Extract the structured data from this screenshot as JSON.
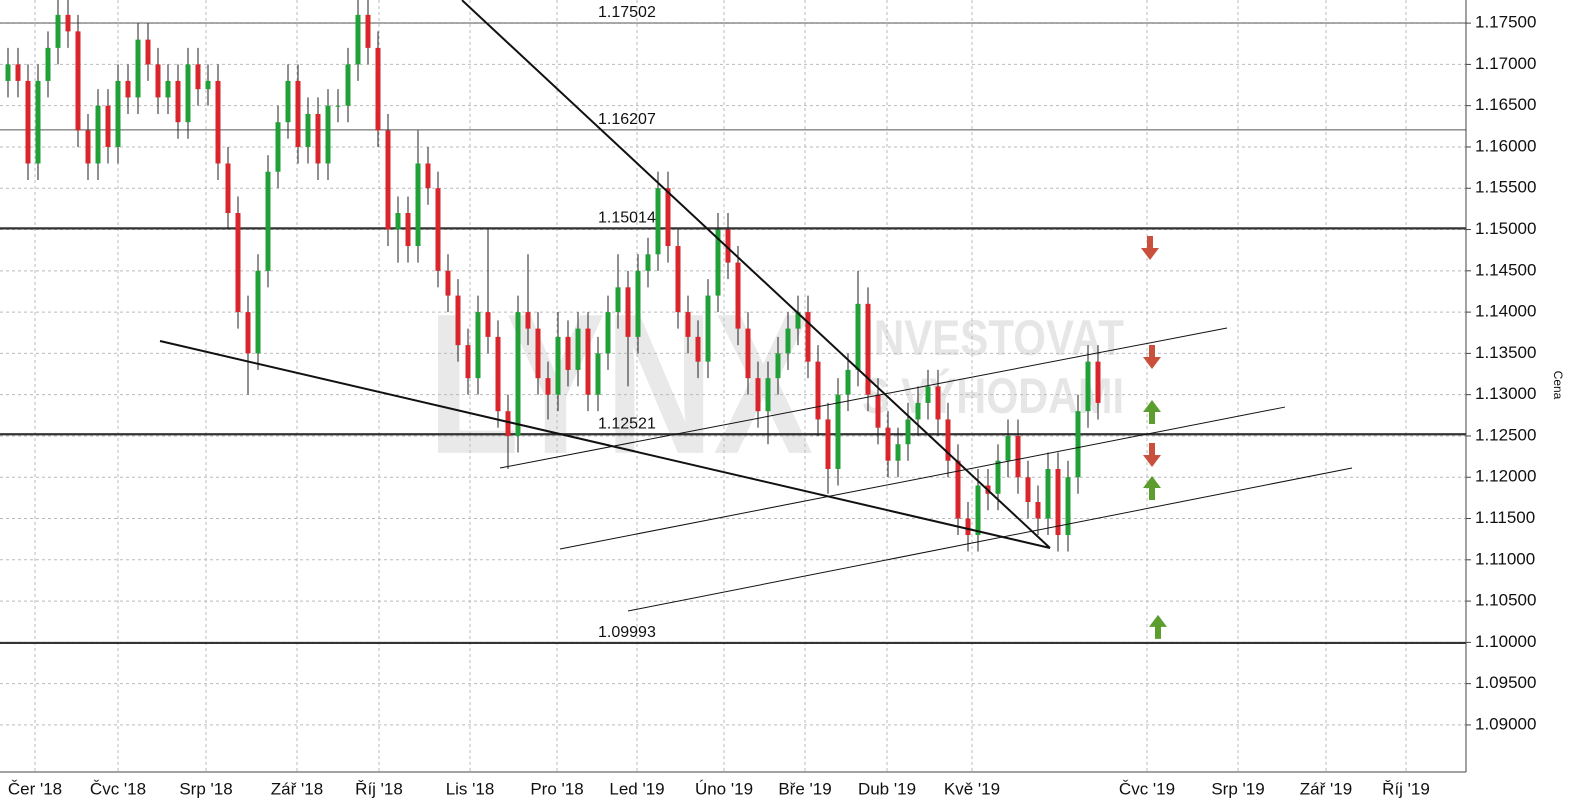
{
  "chart_data": {
    "type": "candlestick",
    "ylabel": "Cena",
    "watermark": {
      "logo": "LYNX",
      "lines": [
        "INVESTOVAT",
        "S VÝHODAMI"
      ]
    },
    "up_color": "#21a038",
    "down_color": "#d8262c",
    "grid": true,
    "xlim": [
      -0.8,
      145.8
    ],
    "ylim": [
      1.0843,
      1.1778
    ],
    "xticks": [
      {
        "value": 2.7,
        "label": "Čer '18"
      },
      {
        "value": 11,
        "label": "Čvc '18"
      },
      {
        "value": 19.8,
        "label": "Srp '18"
      },
      {
        "value": 28.9,
        "label": "Zář '18"
      },
      {
        "value": 37.1,
        "label": "Říj '18"
      },
      {
        "value": 46.2,
        "label": "Lis '18"
      },
      {
        "value": 54.9,
        "label": "Pro '18"
      },
      {
        "value": 62.9,
        "label": "Led '19"
      },
      {
        "value": 71.6,
        "label": "Úno '19"
      },
      {
        "value": 79.7,
        "label": "Bře '19"
      },
      {
        "value": 87.9,
        "label": "Dub '19"
      },
      {
        "value": 96.4,
        "label": "Kvě '19"
      },
      {
        "value": 113.9,
        "label": "Čvc '19"
      },
      {
        "value": 123,
        "label": "Srp '19"
      },
      {
        "value": 131.8,
        "label": "Zář '19"
      },
      {
        "value": 139.8,
        "label": "Říj '19"
      }
    ],
    "yticks": [
      {
        "value": 1.175,
        "label": "1.17500"
      },
      {
        "value": 1.17,
        "label": "1.17000"
      },
      {
        "value": 1.165,
        "label": "1.16500"
      },
      {
        "value": 1.16,
        "label": "1.16000"
      },
      {
        "value": 1.155,
        "label": "1.15500"
      },
      {
        "value": 1.15,
        "label": "1.15000"
      },
      {
        "value": 1.145,
        "label": "1.14500"
      },
      {
        "value": 1.14,
        "label": "1.14000"
      },
      {
        "value": 1.135,
        "label": "1.13500"
      },
      {
        "value": 1.13,
        "label": "1.13000"
      },
      {
        "value": 1.125,
        "label": "1.12500"
      },
      {
        "value": 1.12,
        "label": "1.12000"
      },
      {
        "value": 1.115,
        "label": "1.11500"
      },
      {
        "value": 1.11,
        "label": "1.11000"
      },
      {
        "value": 1.105,
        "label": "1.10500"
      },
      {
        "value": 1.1,
        "label": "1.10000"
      },
      {
        "value": 1.095,
        "label": "1.09500"
      },
      {
        "value": 1.09,
        "label": "1.09000"
      }
    ],
    "levels": [
      {
        "value": 1.17502,
        "bold": false
      },
      {
        "value": 1.16207,
        "bold": false
      },
      {
        "value": 1.15014,
        "bold": true
      },
      {
        "value": 1.12521,
        "bold": true
      },
      {
        "value": 1.09993,
        "bold": true
      }
    ],
    "trendlines": [
      {
        "x": [
          45.4,
          104.2
        ],
        "y": [
          1.17778,
          1.11143
        ],
        "bold": true
      },
      {
        "x": [
          15.2,
          104.2
        ],
        "y": [
          1.1365,
          1.11143
        ],
        "bold": true
      },
      {
        "x": [
          49.2,
          121.9
        ],
        "y": [
          1.12112,
          1.13807
        ],
        "bold": false
      },
      {
        "x": [
          55.2,
          127.7
        ],
        "y": [
          1.11131,
          1.1285
        ],
        "bold": false
      },
      {
        "x": [
          62,
          134.4
        ],
        "y": [
          1.1038,
          1.12112
        ],
        "bold": false
      }
    ],
    "signals": [
      {
        "x": 114.2,
        "y": 1.14776,
        "direction": "down",
        "color": "#c9503c"
      },
      {
        "x": 114.4,
        "y": 1.13456,
        "direction": "down",
        "color": "#c9503c"
      },
      {
        "x": 114.4,
        "y": 1.1279,
        "direction": "up",
        "color": "#5c9e2e"
      },
      {
        "x": 114.4,
        "y": 1.12269,
        "direction": "down",
        "color": "#c9503c"
      },
      {
        "x": 114.4,
        "y": 1.1187,
        "direction": "up",
        "color": "#5c9e2e"
      },
      {
        "x": 115,
        "y": 1.10187,
        "direction": "up",
        "color": "#5c9e2e"
      }
    ],
    "open": [
      1.168,
      1.17,
      1.168,
      1.158,
      1.168,
      1.172,
      1.176,
      1.174,
      1.162,
      1.158,
      1.165,
      1.16,
      1.168,
      1.166,
      1.173,
      1.17,
      1.166,
      1.168,
      1.163,
      1.17,
      1.167,
      1.168,
      1.158,
      1.152,
      1.14,
      1.135,
      1.145,
      1.157,
      1.163,
      1.168,
      1.16,
      1.164,
      1.158,
      1.165,
      1.165,
      1.17,
      1.176,
      1.172,
      1.162,
      1.15,
      1.152,
      1.148,
      1.158,
      1.155,
      1.145,
      1.142,
      1.136,
      1.132,
      1.14,
      1.137,
      1.128,
      1.125,
      1.14,
      1.138,
      1.132,
      1.13,
      1.137,
      1.133,
      1.138,
      1.13,
      1.135,
      1.14,
      1.143,
      1.137,
      1.145,
      1.147,
      1.155,
      1.148,
      1.14,
      1.137,
      1.134,
      1.142,
      1.15,
      1.146,
      1.138,
      1.132,
      1.128,
      1.132,
      1.135,
      1.138,
      1.14,
      1.134,
      1.127,
      1.121,
      1.13,
      1.133,
      1.141,
      1.13,
      1.126,
      1.122,
      1.124,
      1.127,
      1.129,
      1.131,
      1.127,
      1.122,
      1.115,
      1.113,
      1.119,
      1.118,
      1.122,
      1.125,
      1.12,
      1.117,
      1.115,
      1.121,
      1.113,
      1.12,
      1.128,
      1.134
    ],
    "high": [
      1.172,
      1.172,
      1.17,
      1.17,
      1.174,
      1.178,
      1.178,
      1.176,
      1.164,
      1.167,
      1.167,
      1.17,
      1.17,
      1.175,
      1.175,
      1.172,
      1.17,
      1.17,
      1.172,
      1.172,
      1.17,
      1.17,
      1.16,
      1.154,
      1.142,
      1.147,
      1.159,
      1.165,
      1.17,
      1.17,
      1.166,
      1.166,
      1.167,
      1.167,
      1.172,
      1.178,
      1.178,
      1.174,
      1.164,
      1.154,
      1.154,
      1.162,
      1.16,
      1.157,
      1.147,
      1.144,
      1.138,
      1.142,
      1.15,
      1.139,
      1.13,
      1.142,
      1.147,
      1.14,
      1.134,
      1.14,
      1.139,
      1.14,
      1.14,
      1.137,
      1.142,
      1.147,
      1.145,
      1.147,
      1.149,
      1.157,
      1.157,
      1.15,
      1.142,
      1.139,
      1.144,
      1.152,
      1.152,
      1.148,
      1.14,
      1.134,
      1.134,
      1.137,
      1.14,
      1.142,
      1.142,
      1.136,
      1.129,
      1.132,
      1.135,
      1.145,
      1.143,
      1.132,
      1.128,
      1.126,
      1.129,
      1.131,
      1.133,
      1.133,
      1.129,
      1.124,
      1.117,
      1.121,
      1.121,
      1.124,
      1.127,
      1.127,
      1.122,
      1.119,
      1.123,
      1.123,
      1.122,
      1.13,
      1.136,
      1.136
    ],
    "low": [
      1.166,
      1.166,
      1.156,
      1.156,
      1.166,
      1.17,
      1.172,
      1.16,
      1.156,
      1.156,
      1.158,
      1.158,
      1.164,
      1.164,
      1.168,
      1.164,
      1.164,
      1.161,
      1.161,
      1.165,
      1.165,
      1.156,
      1.15,
      1.138,
      1.13,
      1.133,
      1.143,
      1.155,
      1.161,
      1.158,
      1.158,
      1.156,
      1.156,
      1.163,
      1.163,
      1.168,
      1.17,
      1.16,
      1.148,
      1.146,
      1.146,
      1.146,
      1.153,
      1.143,
      1.14,
      1.134,
      1.13,
      1.13,
      1.135,
      1.126,
      1.121,
      1.123,
      1.136,
      1.13,
      1.127,
      1.128,
      1.131,
      1.131,
      1.128,
      1.128,
      1.133,
      1.138,
      1.131,
      1.135,
      1.143,
      1.145,
      1.146,
      1.138,
      1.135,
      1.132,
      1.132,
      1.14,
      1.144,
      1.136,
      1.13,
      1.126,
      1.124,
      1.13,
      1.133,
      1.136,
      1.132,
      1.125,
      1.118,
      1.119,
      1.128,
      1.131,
      1.128,
      1.124,
      1.12,
      1.12,
      1.122,
      1.125,
      1.127,
      1.125,
      1.12,
      1.113,
      1.111,
      1.111,
      1.116,
      1.116,
      1.12,
      1.118,
      1.115,
      1.113,
      1.113,
      1.111,
      1.111,
      1.118,
      1.126,
      1.127
    ],
    "close": [
      1.17,
      1.168,
      1.158,
      1.168,
      1.172,
      1.176,
      1.174,
      1.162,
      1.158,
      1.165,
      1.16,
      1.168,
      1.166,
      1.173,
      1.17,
      1.166,
      1.168,
      1.163,
      1.17,
      1.167,
      1.168,
      1.158,
      1.152,
      1.14,
      1.135,
      1.145,
      1.157,
      1.163,
      1.168,
      1.16,
      1.164,
      1.158,
      1.165,
      1.165,
      1.17,
      1.176,
      1.172,
      1.162,
      1.15,
      1.152,
      1.148,
      1.158,
      1.155,
      1.145,
      1.142,
      1.136,
      1.132,
      1.14,
      1.137,
      1.128,
      1.125,
      1.14,
      1.138,
      1.132,
      1.13,
      1.137,
      1.133,
      1.138,
      1.13,
      1.135,
      1.14,
      1.143,
      1.137,
      1.145,
      1.147,
      1.155,
      1.148,
      1.14,
      1.137,
      1.134,
      1.142,
      1.15,
      1.146,
      1.138,
      1.132,
      1.128,
      1.132,
      1.135,
      1.138,
      1.14,
      1.134,
      1.127,
      1.121,
      1.13,
      1.133,
      1.141,
      1.13,
      1.126,
      1.122,
      1.124,
      1.127,
      1.129,
      1.131,
      1.127,
      1.122,
      1.115,
      1.113,
      1.119,
      1.118,
      1.122,
      1.125,
      1.12,
      1.117,
      1.115,
      1.121,
      1.113,
      1.12,
      1.128,
      1.134,
      1.129
    ]
  }
}
